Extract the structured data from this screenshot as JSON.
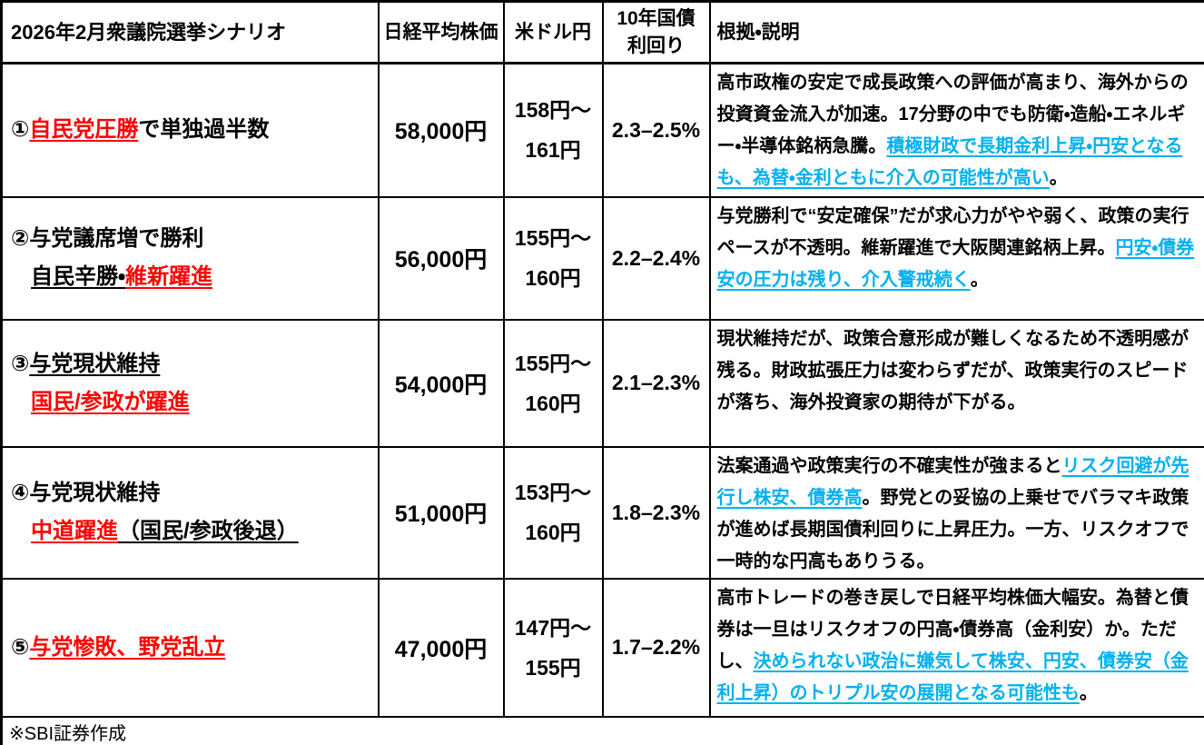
{
  "colors": {
    "red_accent": "#FF0000",
    "blue_accent": "#00B0F0",
    "border": "#000000",
    "background": "#FFFFFF"
  },
  "header": {
    "scenario": "2026年2月衆議院選挙シナリオ",
    "nikkei": "日経平均株価",
    "usdjpy": "米ドル円",
    "jgb": [
      "10年国債",
      "利回り"
    ],
    "rationale": "根拠・説明"
  },
  "rows": [
    {
      "scenario_lines": [
        {
          "indent": false,
          "segments": [
            {
              "text": "①",
              "style": "plain"
            },
            {
              "text": "自民党圧勝",
              "style": "red"
            },
            {
              "text": "で単独過半数",
              "style": "plain"
            }
          ]
        }
      ],
      "nikkei": "58,000円",
      "usdjpy": [
        "158円～",
        "161円"
      ],
      "jgb_yield": "2.3–2.5%",
      "rationale_segments": [
        {
          "text": "高市政権の安定で成長政策への評価が高まり、海外からの投資資金流入が加速。17分野の中でも防衛・造船・エネルギー・半導体銘柄急騰。",
          "style": "plain"
        },
        {
          "text": "積極財政で長期金利上昇・円安となるも、為替・金利ともに介入の可能性が高い",
          "style": "blue"
        },
        {
          "text": "。",
          "style": "plain"
        }
      ]
    },
    {
      "scenario_lines": [
        {
          "indent": false,
          "segments": [
            {
              "text": "②与党議席増で勝利",
              "style": "plain"
            }
          ]
        },
        {
          "indent": true,
          "segments": [
            {
              "text": "自民辛勝・",
              "style": "underline"
            },
            {
              "text": "維新躍進",
              "style": "red"
            }
          ]
        }
      ],
      "nikkei": "56,000円",
      "usdjpy": [
        "155円～",
        "160円"
      ],
      "jgb_yield": "2.2–2.4%",
      "rationale_segments": [
        {
          "text": "与党勝利で“安定確保”だが求心力がやや弱く、政策の実行ペースが不透明。維新躍進で大阪関連銘柄上昇。",
          "style": "plain"
        },
        {
          "text": "円安・債券安の圧力は残り、介入警戒続く",
          "style": "blue"
        },
        {
          "text": "。",
          "style": "plain"
        }
      ]
    },
    {
      "scenario_lines": [
        {
          "indent": false,
          "segments": [
            {
              "text": "③",
              "style": "plain"
            },
            {
              "text": "与党現状維持",
              "style": "underline"
            }
          ]
        },
        {
          "indent": true,
          "segments": [
            {
              "text": "国民/参政が躍進",
              "style": "red"
            }
          ]
        }
      ],
      "nikkei": "54,000円",
      "usdjpy": [
        "155円～",
        "160円"
      ],
      "jgb_yield": "2.1–2.3%",
      "rationale_segments": [
        {
          "text": "現状維持だが、政策合意形成が難しくなるため不透明感が残る。財政拡張圧力は変わらずだが、政策実行のスピードが落ち、海外投資家の期待が下がる。",
          "style": "plain"
        }
      ]
    },
    {
      "scenario_lines": [
        {
          "indent": false,
          "segments": [
            {
              "text": "④与党現状維持",
              "style": "plain"
            }
          ]
        },
        {
          "indent": true,
          "segments": [
            {
              "text": "中道躍進",
              "style": "red"
            },
            {
              "text": "（国民/参政後退）",
              "style": "underline"
            }
          ]
        }
      ],
      "nikkei": "51,000円",
      "usdjpy": [
        "153円～",
        "160円"
      ],
      "jgb_yield": "1.8–2.3%",
      "rationale_segments": [
        {
          "text": "法案通過や政策実行の不確実性が強まると",
          "style": "plain"
        },
        {
          "text": "リスク回避が先行し株安、債券高",
          "style": "blue"
        },
        {
          "text": "。野党との妥協の上乗せでバラマキ政策が進めば長期国債利回りに上昇圧力。一方、リスクオフで一時的な円高もありうる。",
          "style": "plain"
        }
      ]
    },
    {
      "scenario_lines": [
        {
          "indent": false,
          "segments": [
            {
              "text": "⑤",
              "style": "plain"
            },
            {
              "text": "与党惨敗、野党乱立",
              "style": "red"
            }
          ]
        }
      ],
      "nikkei": "47,000円",
      "usdjpy": [
        "147円～",
        "155円"
      ],
      "jgb_yield": "1.7–2.2%",
      "rationale_segments": [
        {
          "text": "高市トレードの巻き戻しで日経平均株価大幅安。為替と債券は一旦はリスクオフの円高・債券高（金利安）か。ただし、",
          "style": "plain"
        },
        {
          "text": "決められない政治に嫌気して株安、円安、債券安（金利上昇）のトリプル安の展開となる可能性も",
          "style": "blue"
        },
        {
          "text": "。",
          "style": "plain"
        }
      ]
    }
  ],
  "footer": {
    "note": "※SBI証券作成"
  }
}
